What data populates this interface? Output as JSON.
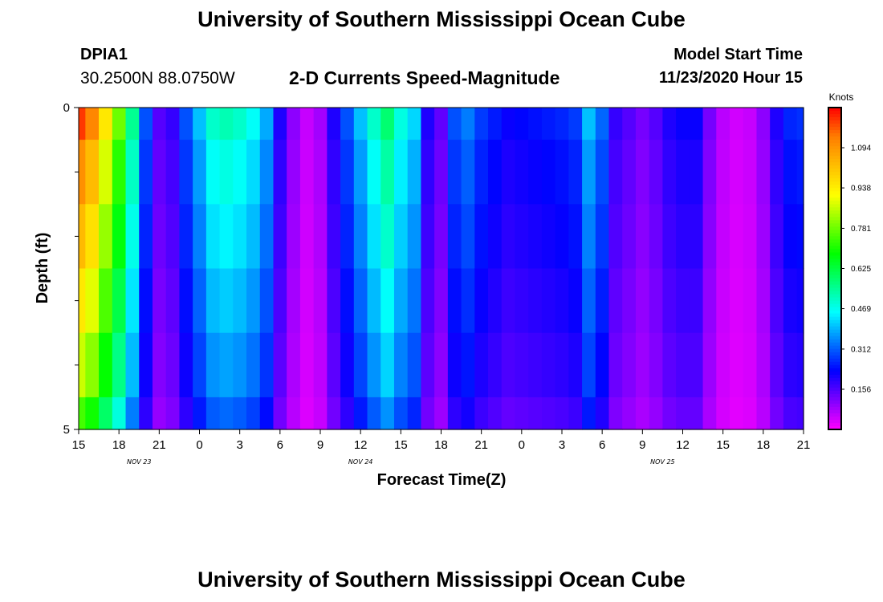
{
  "header": {
    "title": "University of Southern Mississippi Ocean Cube",
    "station_id": "DPIA1",
    "station_coords": "30.2500N 88.0750W",
    "subtitle": "2-D Currents Speed-Magnitude",
    "model_start_label": "Model Start Time",
    "model_start_value": "11/23/2020 Hour 15"
  },
  "footer": {
    "title": "University of Southern Mississippi Ocean Cube"
  },
  "chart_data": {
    "type": "heatmap",
    "title": "2-D Currents Speed-Magnitude",
    "xlabel": "Forecast Time(Z)",
    "ylabel": "Depth (ft)",
    "x_tick_labels": [
      "15",
      "18",
      "21",
      "0",
      "3",
      "6",
      "9",
      "12",
      "15",
      "18",
      "21",
      "0",
      "3",
      "6",
      "9",
      "12",
      "15",
      "18",
      "21"
    ],
    "x_hours": [
      0,
      3,
      6,
      9,
      12,
      15,
      18,
      21,
      24,
      27,
      30,
      33,
      36,
      39,
      42,
      45,
      48,
      51,
      54
    ],
    "x_hour_range": [
      0,
      54
    ],
    "date_labels": [
      {
        "label": "NOV  23",
        "hour": 4.5
      },
      {
        "label": "NOV  24",
        "hour": 21
      },
      {
        "label": "NOV  25",
        "hour": 43.5
      }
    ],
    "y_tick_labels": [
      "0",
      "5"
    ],
    "y_range": [
      0,
      5
    ],
    "y_minor_ticks": [
      1,
      2,
      3,
      4
    ],
    "depth_bins": [
      0,
      0.5,
      1.5,
      2.5,
      3.5,
      4.5,
      5
    ],
    "colorbar": {
      "unit_label": "Knots",
      "min": 0,
      "max": 1.25,
      "tick_values": [
        1.094,
        0.938,
        0.781,
        0.625,
        0.469,
        0.312,
        0.156
      ],
      "tick_labels": [
        "1.094",
        "0.938",
        "0.781",
        "0.625",
        "0.469",
        "0.312",
        "0.156"
      ],
      "colors": [
        "#ff00ff",
        "#7d00ff",
        "#0000ff",
        "#007dff",
        "#00ffff",
        "#00ff7d",
        "#00ff00",
        "#7dff00",
        "#ffff00",
        "#ffbf00",
        "#ff7d00",
        "#ff0000"
      ]
    },
    "time_hours": [
      0,
      1,
      2,
      3,
      4,
      5,
      6,
      7,
      8,
      9,
      10,
      11,
      12,
      13,
      14,
      15,
      16,
      17,
      18,
      19,
      20,
      21,
      22,
      23,
      24,
      25,
      26,
      27,
      28,
      29,
      30,
      31,
      32,
      33,
      34,
      35,
      36,
      37,
      38,
      39,
      40,
      41,
      42,
      43,
      44,
      45,
      46,
      47,
      48,
      49,
      50,
      51,
      52,
      53,
      54
    ],
    "surface_speed": [
      1.2,
      1.12,
      0.95,
      0.78,
      0.55,
      0.3,
      0.15,
      0.18,
      0.3,
      0.4,
      0.5,
      0.52,
      0.5,
      0.46,
      0.38,
      0.2,
      0.1,
      0.05,
      0.08,
      0.2,
      0.3,
      0.4,
      0.5,
      0.58,
      0.48,
      0.42,
      0.2,
      0.14,
      0.3,
      0.34,
      0.28,
      0.25,
      0.22,
      0.23,
      0.24,
      0.25,
      0.26,
      0.28,
      0.4,
      0.32,
      0.18,
      0.15,
      0.12,
      0.15,
      0.2,
      0.22,
      0.22,
      0.12,
      0.06,
      0.04,
      0.05,
      0.1,
      0.2,
      0.26,
      0.27
    ],
    "depth_factors": [
      1.0,
      0.92,
      0.86,
      0.79,
      0.72,
      0.62
    ]
  }
}
